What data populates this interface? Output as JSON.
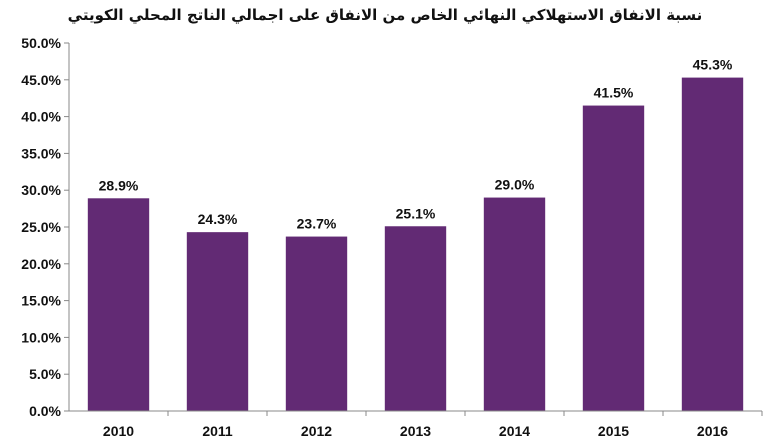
{
  "chart_data": {
    "type": "bar",
    "title": "نسبة الانفاق الاستهلاكي النهائي الخاص من الانفاق على اجمالي الناتج المحلي الكويتي",
    "categories": [
      "2010",
      "2011",
      "2012",
      "2013",
      "2014",
      "2015",
      "2016"
    ],
    "values": [
      28.9,
      24.3,
      23.7,
      25.1,
      29.0,
      41.5,
      45.3
    ],
    "value_labels": [
      "28.9%",
      "24.3%",
      "23.7%",
      "25.1%",
      "29.0%",
      "41.5%",
      "45.3%"
    ],
    "ylim": [
      0,
      50
    ],
    "y_ticks": [
      0,
      5,
      10,
      15,
      20,
      25,
      30,
      35,
      40,
      45,
      50
    ],
    "y_tick_labels": [
      "0.0%",
      "5.0%",
      "10.0%",
      "15.0%",
      "20.0%",
      "25.0%",
      "30.0%",
      "35.0%",
      "40.0%",
      "45.0%",
      "50.0%"
    ],
    "xlabel": "",
    "ylabel": "",
    "grid": false,
    "legend": "none",
    "bar_color": "#622A74"
  }
}
